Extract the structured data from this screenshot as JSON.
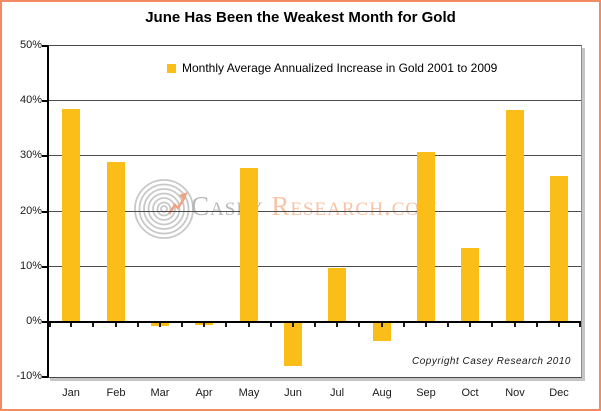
{
  "title": "June Has Been the Weakest Month for Gold",
  "legend": {
    "label": "Monthly Average Annualized Increase in Gold 2001 to 2009"
  },
  "watermark": {
    "brand_primary": "Casey",
    "brand_secondary": "Research.com"
  },
  "copyright": "Copyright Casey Research 2010",
  "colors": {
    "bar": "#FBBE18",
    "frame_border": "#F28B63",
    "watermark_primary": "#B8B8B8",
    "watermark_secondary": "#F8C3A6",
    "logo_rings": "#C8C8C8",
    "logo_arrow": "#EFA283",
    "gridline": "#4D4D4D",
    "axis": "#000000"
  },
  "chart_data": {
    "type": "bar",
    "categories": [
      "Jan",
      "Feb",
      "Mar",
      "Apr",
      "May",
      "Jun",
      "Jul",
      "Aug",
      "Sep",
      "Oct",
      "Nov",
      "Dec"
    ],
    "values": [
      38.6,
      29.0,
      -0.5,
      -0.4,
      28.0,
      -7.8,
      9.7,
      -3.2,
      30.8,
      13.5,
      38.4,
      26.4
    ],
    "series_name": "Monthly Average Annualized Increase in Gold 2001 to 2009",
    "title": "June Has Been the Weakest Month for Gold",
    "xlabel": "",
    "ylabel": "",
    "ylim": [
      -10,
      50
    ],
    "ytick_step": 10,
    "ytick_format": "percent",
    "grid": true,
    "legend_position": "top-center"
  }
}
